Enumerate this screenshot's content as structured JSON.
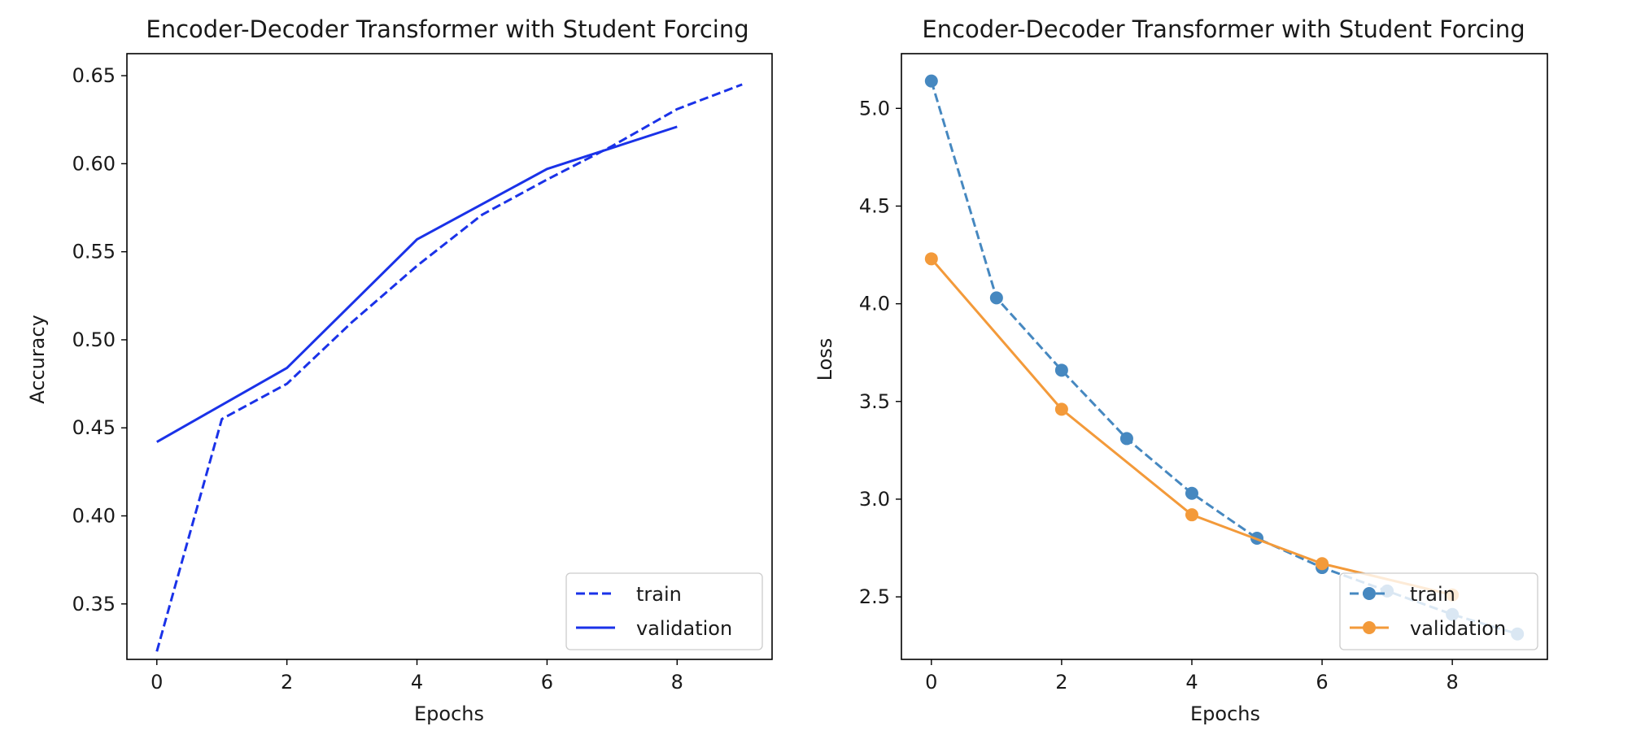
{
  "chart_data": [
    {
      "type": "line",
      "title": "Encoder-Decoder Transformer with Student Forcing",
      "xlabel": "Epochs",
      "ylabel": "Accuracy",
      "xlim": [
        -0.46,
        9.46
      ],
      "ylim": [
        0.3185,
        0.6625
      ],
      "xticks": [
        0,
        2,
        4,
        6,
        8
      ],
      "yticks": [
        0.35,
        0.4,
        0.45,
        0.5,
        0.55,
        0.6,
        0.65
      ],
      "xtick_labels": [
        "0",
        "2",
        "4",
        "6",
        "8"
      ],
      "ytick_labels": [
        "0.35",
        "0.40",
        "0.45",
        "0.50",
        "0.55",
        "0.60",
        "0.65"
      ],
      "grid": false,
      "legend_position": "lower-right",
      "series": [
        {
          "name": "train",
          "style": "dashed",
          "markers": false,
          "color": "#1a32e8",
          "x": [
            0,
            1,
            2,
            3,
            4,
            5,
            6,
            7,
            8,
            9
          ],
          "y": [
            0.323,
            0.455,
            0.475,
            0.51,
            0.542,
            0.571,
            0.591,
            0.61,
            0.631,
            0.645
          ]
        },
        {
          "name": "validation",
          "style": "solid",
          "markers": false,
          "color": "#1a32e8",
          "x": [
            0,
            2,
            4,
            6,
            8
          ],
          "y": [
            0.442,
            0.484,
            0.557,
            0.597,
            0.621
          ]
        }
      ]
    },
    {
      "type": "line",
      "title": "Encoder-Decoder Transformer with Student Forcing",
      "xlabel": "Epochs",
      "ylabel": "Loss",
      "xlim": [
        -0.46,
        9.46
      ],
      "ylim": [
        2.18,
        5.28
      ],
      "xticks": [
        0,
        2,
        4,
        6,
        8
      ],
      "yticks": [
        2.5,
        3.0,
        3.5,
        4.0,
        4.5,
        5.0
      ],
      "xtick_labels": [
        "0",
        "2",
        "4",
        "6",
        "8"
      ],
      "ytick_labels": [
        "2.5",
        "3.0",
        "3.5",
        "4.0",
        "4.5",
        "5.0"
      ],
      "grid": false,
      "legend_position": "lower-right",
      "series": [
        {
          "name": "train",
          "style": "dashed",
          "markers": true,
          "color": "#4688c0",
          "x": [
            0,
            1,
            2,
            3,
            4,
            5,
            6,
            7,
            8,
            9
          ],
          "y": [
            5.14,
            4.03,
            3.66,
            3.31,
            3.03,
            2.8,
            2.65,
            2.53,
            2.41,
            2.31
          ]
        },
        {
          "name": "validation",
          "style": "solid",
          "markers": true,
          "color": "#f39a3a",
          "x": [
            0,
            2,
            4,
            6,
            8
          ],
          "y": [
            4.23,
            3.46,
            2.92,
            2.67,
            2.51
          ]
        }
      ]
    }
  ]
}
